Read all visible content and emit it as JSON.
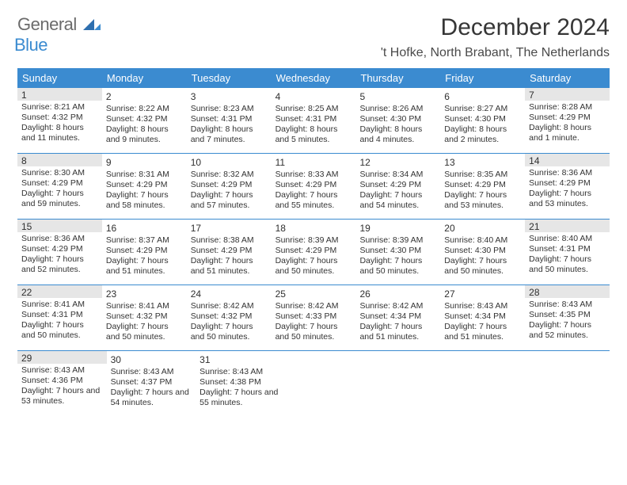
{
  "brand": {
    "part1": "General",
    "part2": "Blue"
  },
  "title": "December 2024",
  "location": "'t Hofke, North Brabant, The Netherlands",
  "colors": {
    "accent": "#3b8bd0",
    "shade": "#e6e6e6",
    "text": "#333333"
  },
  "daysOfWeek": [
    "Sunday",
    "Monday",
    "Tuesday",
    "Wednesday",
    "Thursday",
    "Friday",
    "Saturday"
  ],
  "weeks": [
    [
      {
        "n": "1",
        "shade": true,
        "sr": "Sunrise: 8:21 AM",
        "ss": "Sunset: 4:32 PM",
        "dl": "Daylight: 8 hours and 11 minutes."
      },
      {
        "n": "2",
        "shade": false,
        "sr": "Sunrise: 8:22 AM",
        "ss": "Sunset: 4:32 PM",
        "dl": "Daylight: 8 hours and 9 minutes."
      },
      {
        "n": "3",
        "shade": false,
        "sr": "Sunrise: 8:23 AM",
        "ss": "Sunset: 4:31 PM",
        "dl": "Daylight: 8 hours and 7 minutes."
      },
      {
        "n": "4",
        "shade": false,
        "sr": "Sunrise: 8:25 AM",
        "ss": "Sunset: 4:31 PM",
        "dl": "Daylight: 8 hours and 5 minutes."
      },
      {
        "n": "5",
        "shade": false,
        "sr": "Sunrise: 8:26 AM",
        "ss": "Sunset: 4:30 PM",
        "dl": "Daylight: 8 hours and 4 minutes."
      },
      {
        "n": "6",
        "shade": false,
        "sr": "Sunrise: 8:27 AM",
        "ss": "Sunset: 4:30 PM",
        "dl": "Daylight: 8 hours and 2 minutes."
      },
      {
        "n": "7",
        "shade": true,
        "sr": "Sunrise: 8:28 AM",
        "ss": "Sunset: 4:29 PM",
        "dl": "Daylight: 8 hours and 1 minute."
      }
    ],
    [
      {
        "n": "8",
        "shade": true,
        "sr": "Sunrise: 8:30 AM",
        "ss": "Sunset: 4:29 PM",
        "dl": "Daylight: 7 hours and 59 minutes."
      },
      {
        "n": "9",
        "shade": false,
        "sr": "Sunrise: 8:31 AM",
        "ss": "Sunset: 4:29 PM",
        "dl": "Daylight: 7 hours and 58 minutes."
      },
      {
        "n": "10",
        "shade": false,
        "sr": "Sunrise: 8:32 AM",
        "ss": "Sunset: 4:29 PM",
        "dl": "Daylight: 7 hours and 57 minutes."
      },
      {
        "n": "11",
        "shade": false,
        "sr": "Sunrise: 8:33 AM",
        "ss": "Sunset: 4:29 PM",
        "dl": "Daylight: 7 hours and 55 minutes."
      },
      {
        "n": "12",
        "shade": false,
        "sr": "Sunrise: 8:34 AM",
        "ss": "Sunset: 4:29 PM",
        "dl": "Daylight: 7 hours and 54 minutes."
      },
      {
        "n": "13",
        "shade": false,
        "sr": "Sunrise: 8:35 AM",
        "ss": "Sunset: 4:29 PM",
        "dl": "Daylight: 7 hours and 53 minutes."
      },
      {
        "n": "14",
        "shade": true,
        "sr": "Sunrise: 8:36 AM",
        "ss": "Sunset: 4:29 PM",
        "dl": "Daylight: 7 hours and 53 minutes."
      }
    ],
    [
      {
        "n": "15",
        "shade": true,
        "sr": "Sunrise: 8:36 AM",
        "ss": "Sunset: 4:29 PM",
        "dl": "Daylight: 7 hours and 52 minutes."
      },
      {
        "n": "16",
        "shade": false,
        "sr": "Sunrise: 8:37 AM",
        "ss": "Sunset: 4:29 PM",
        "dl": "Daylight: 7 hours and 51 minutes."
      },
      {
        "n": "17",
        "shade": false,
        "sr": "Sunrise: 8:38 AM",
        "ss": "Sunset: 4:29 PM",
        "dl": "Daylight: 7 hours and 51 minutes."
      },
      {
        "n": "18",
        "shade": false,
        "sr": "Sunrise: 8:39 AM",
        "ss": "Sunset: 4:29 PM",
        "dl": "Daylight: 7 hours and 50 minutes."
      },
      {
        "n": "19",
        "shade": false,
        "sr": "Sunrise: 8:39 AM",
        "ss": "Sunset: 4:30 PM",
        "dl": "Daylight: 7 hours and 50 minutes."
      },
      {
        "n": "20",
        "shade": false,
        "sr": "Sunrise: 8:40 AM",
        "ss": "Sunset: 4:30 PM",
        "dl": "Daylight: 7 hours and 50 minutes."
      },
      {
        "n": "21",
        "shade": true,
        "sr": "Sunrise: 8:40 AM",
        "ss": "Sunset: 4:31 PM",
        "dl": "Daylight: 7 hours and 50 minutes."
      }
    ],
    [
      {
        "n": "22",
        "shade": true,
        "sr": "Sunrise: 8:41 AM",
        "ss": "Sunset: 4:31 PM",
        "dl": "Daylight: 7 hours and 50 minutes."
      },
      {
        "n": "23",
        "shade": false,
        "sr": "Sunrise: 8:41 AM",
        "ss": "Sunset: 4:32 PM",
        "dl": "Daylight: 7 hours and 50 minutes."
      },
      {
        "n": "24",
        "shade": false,
        "sr": "Sunrise: 8:42 AM",
        "ss": "Sunset: 4:32 PM",
        "dl": "Daylight: 7 hours and 50 minutes."
      },
      {
        "n": "25",
        "shade": false,
        "sr": "Sunrise: 8:42 AM",
        "ss": "Sunset: 4:33 PM",
        "dl": "Daylight: 7 hours and 50 minutes."
      },
      {
        "n": "26",
        "shade": false,
        "sr": "Sunrise: 8:42 AM",
        "ss": "Sunset: 4:34 PM",
        "dl": "Daylight: 7 hours and 51 minutes."
      },
      {
        "n": "27",
        "shade": false,
        "sr": "Sunrise: 8:43 AM",
        "ss": "Sunset: 4:34 PM",
        "dl": "Daylight: 7 hours and 51 minutes."
      },
      {
        "n": "28",
        "shade": true,
        "sr": "Sunrise: 8:43 AM",
        "ss": "Sunset: 4:35 PM",
        "dl": "Daylight: 7 hours and 52 minutes."
      }
    ],
    [
      {
        "n": "29",
        "shade": true,
        "sr": "Sunrise: 8:43 AM",
        "ss": "Sunset: 4:36 PM",
        "dl": "Daylight: 7 hours and 53 minutes."
      },
      {
        "n": "30",
        "shade": false,
        "sr": "Sunrise: 8:43 AM",
        "ss": "Sunset: 4:37 PM",
        "dl": "Daylight: 7 hours and 54 minutes."
      },
      {
        "n": "31",
        "shade": false,
        "sr": "Sunrise: 8:43 AM",
        "ss": "Sunset: 4:38 PM",
        "dl": "Daylight: 7 hours and 55 minutes."
      },
      null,
      null,
      null,
      null
    ]
  ]
}
